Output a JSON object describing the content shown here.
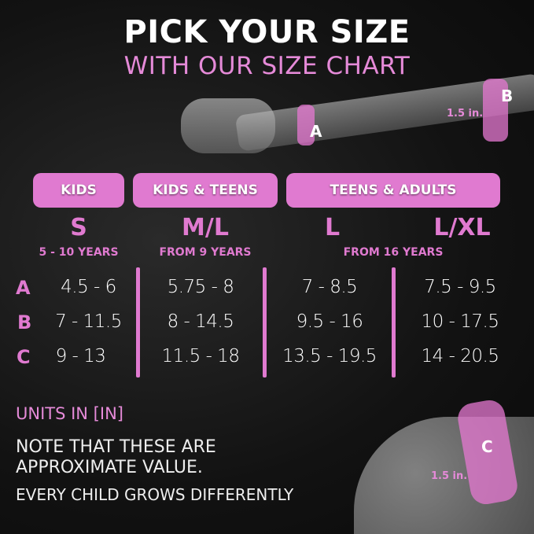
{
  "header": {
    "title": "PICK YOUR SIZE",
    "subtitle": "WITH OUR SIZE CHART"
  },
  "illustration": {
    "labels": {
      "a": "A",
      "b": "B",
      "c": "C"
    },
    "band_width_top": "1.5 in.",
    "band_width_bottom": "1.5 in."
  },
  "groups": [
    {
      "label": "KIDS"
    },
    {
      "label": "KIDS & TEENS"
    },
    {
      "label": "TEENS & ADULTS"
    }
  ],
  "sizes": [
    {
      "size": "S",
      "age": "5 - 10 YEARS",
      "a": "4.5 - 6",
      "b": "7 - 11.5",
      "c": "9 - 13"
    },
    {
      "size": "M/L",
      "age": "FROM 9 YEARS",
      "a": "5.75 - 8",
      "b": "8 - 14.5",
      "c": "11.5 - 18"
    },
    {
      "size": "L",
      "a": "7 - 8.5",
      "b": "9.5 - 16",
      "c": "13.5 - 19.5"
    },
    {
      "size": "L/XL",
      "a": "7.5 - 9.5",
      "b": "10 - 17.5",
      "c": "14 - 20.5"
    }
  ],
  "adult_age": "FROM 16 YEARS",
  "row_labels": [
    "A",
    "B",
    "C"
  ],
  "notes": {
    "units": "UNITS IN [IN]",
    "line1": "NOTE THAT THESE ARE",
    "line2": "APPROXIMATE VALUE.",
    "line3": "EVERY CHILD GROWS DIFFERENTLY"
  },
  "colors": {
    "accent": "#e07ad0",
    "background": "#111111"
  }
}
